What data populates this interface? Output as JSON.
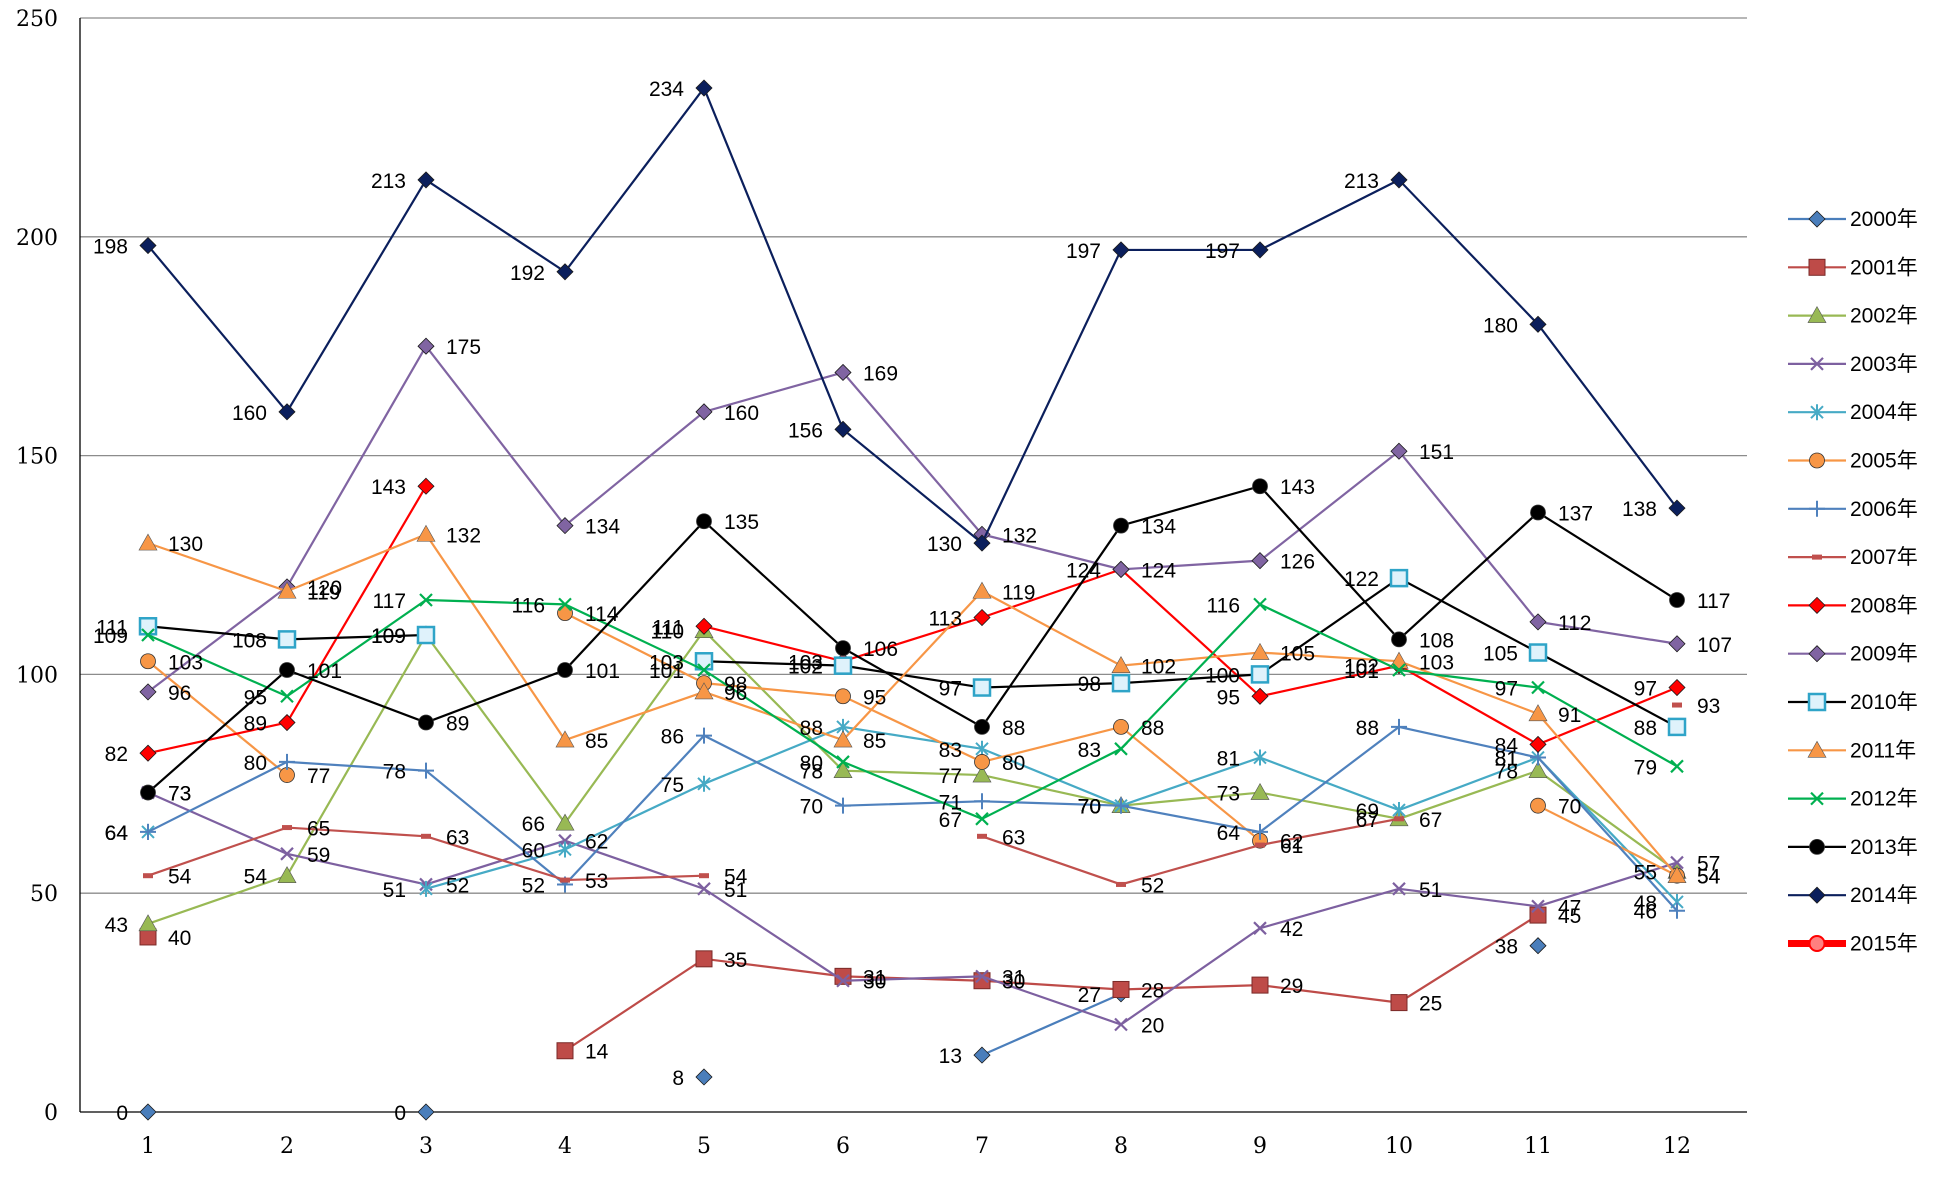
{
  "chart_data": {
    "type": "line",
    "title": "",
    "xlabel": "",
    "ylabel": "",
    "ylim": [
      0,
      250
    ],
    "y_ticks": [
      "0",
      "50",
      "100",
      "150",
      "200",
      "250"
    ],
    "x_ticks": [
      "1",
      "2",
      "3",
      "4",
      "5",
      "6",
      "7",
      "8",
      "9",
      "10",
      "11",
      "12"
    ],
    "grid": "horizontal",
    "legend_position": "right",
    "series": [
      {
        "name": "2000年",
        "color": "#4a7ebb",
        "marker": "diamond",
        "values": [
          0,
          null,
          0,
          null,
          8,
          null,
          13,
          27,
          null,
          null,
          38,
          null
        ]
      },
      {
        "name": "2001年",
        "color": "#be4b48",
        "marker": "square",
        "values": [
          40,
          null,
          null,
          14,
          35,
          31,
          30,
          28,
          29,
          25,
          45,
          null
        ]
      },
      {
        "name": "2002年",
        "color": "#98b954",
        "marker": "triangle",
        "values": [
          43,
          54,
          109,
          66,
          110,
          78,
          77,
          70,
          73,
          67,
          78,
          55
        ]
      },
      {
        "name": "2003年",
        "color": "#7d60a0",
        "marker": "x",
        "values": [
          73,
          59,
          52,
          62,
          51,
          30,
          31,
          20,
          42,
          51,
          47,
          57
        ]
      },
      {
        "name": "2004年",
        "color": "#46aac5",
        "marker": "asterisk",
        "values": [
          64,
          null,
          51,
          60,
          75,
          88,
          83,
          70,
          81,
          69,
          81,
          48
        ]
      },
      {
        "name": "2005年",
        "color": "#f79646",
        "marker": "circle",
        "values": [
          103,
          77,
          null,
          114,
          98,
          95,
          80,
          88,
          62,
          null,
          70,
          54
        ]
      },
      {
        "name": "2006年",
        "color": "#4f81bd",
        "marker": "plus",
        "values": [
          64,
          80,
          78,
          52,
          86,
          70,
          71,
          70,
          64,
          88,
          81,
          46
        ]
      },
      {
        "name": "2007年",
        "color": "#c0504d",
        "marker": "dash",
        "values": [
          54,
          65,
          63,
          53,
          54,
          null,
          63,
          52,
          61,
          67,
          null,
          93
        ]
      },
      {
        "name": "2008年",
        "color": "#ff0000",
        "marker": "diamond",
        "values": [
          82,
          89,
          143,
          null,
          111,
          103,
          113,
          124,
          95,
          102,
          84,
          97
        ]
      },
      {
        "name": "2009年",
        "color": "#8064a2",
        "marker": "diamond",
        "values": [
          96,
          120,
          175,
          134,
          160,
          169,
          132,
          124,
          126,
          151,
          112,
          107
        ]
      },
      {
        "name": "2010年",
        "color": "#000000",
        "marker": "square-open",
        "values": [
          111,
          108,
          109,
          null,
          103,
          102,
          97,
          98,
          100,
          122,
          105,
          88
        ]
      },
      {
        "name": "2011年",
        "color": "#f79646",
        "marker": "triangle",
        "values": [
          130,
          119,
          132,
          85,
          96,
          85,
          119,
          102,
          105,
          103,
          91,
          54
        ]
      },
      {
        "name": "2012年",
        "color": "#00b050",
        "marker": "x",
        "values": [
          109,
          95,
          117,
          116,
          101,
          80,
          67,
          83,
          116,
          101,
          97,
          79
        ]
      },
      {
        "name": "2013年",
        "color": "#000000",
        "marker": "circle",
        "values": [
          73,
          101,
          89,
          101,
          135,
          106,
          88,
          134,
          143,
          108,
          137,
          117
        ]
      },
      {
        "name": "2014年",
        "color": "#0b1f5c",
        "marker": "diamond",
        "values": [
          198,
          160,
          213,
          192,
          234,
          156,
          130,
          197,
          197,
          213,
          180,
          138
        ]
      },
      {
        "name": "2015年",
        "color": "#ff0000",
        "marker": "circle-thick",
        "values": [
          null,
          null,
          null,
          null,
          null,
          null,
          null,
          null,
          null,
          null,
          null,
          null
        ]
      }
    ]
  }
}
